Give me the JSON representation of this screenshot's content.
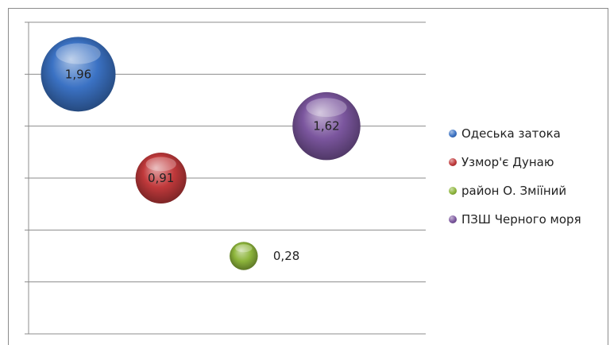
{
  "chart_data": {
    "type": "bubble",
    "title": "",
    "xlabel": "",
    "ylabel": "",
    "grid": true,
    "legend_position": "right",
    "series": [
      {
        "name": "Одеська затока",
        "x": 1,
        "y": 5.0,
        "size": 1.96,
        "label": "1,96",
        "color": "#3b72c4"
      },
      {
        "name": "Узмор'є Дунаю",
        "x": 2,
        "y": 3.0,
        "size": 0.91,
        "label": "0,91",
        "color": "#c0393b"
      },
      {
        "name": "район О. Зміїний",
        "x": 3,
        "y": 1.5,
        "size": 0.28,
        "label": "0,28",
        "color": "#8db53b"
      },
      {
        "name": "ПЗШ Черного моря",
        "x": 4,
        "y": 4.0,
        "size": 1.62,
        "label": "1,62",
        "color": "#7b569e"
      }
    ]
  }
}
